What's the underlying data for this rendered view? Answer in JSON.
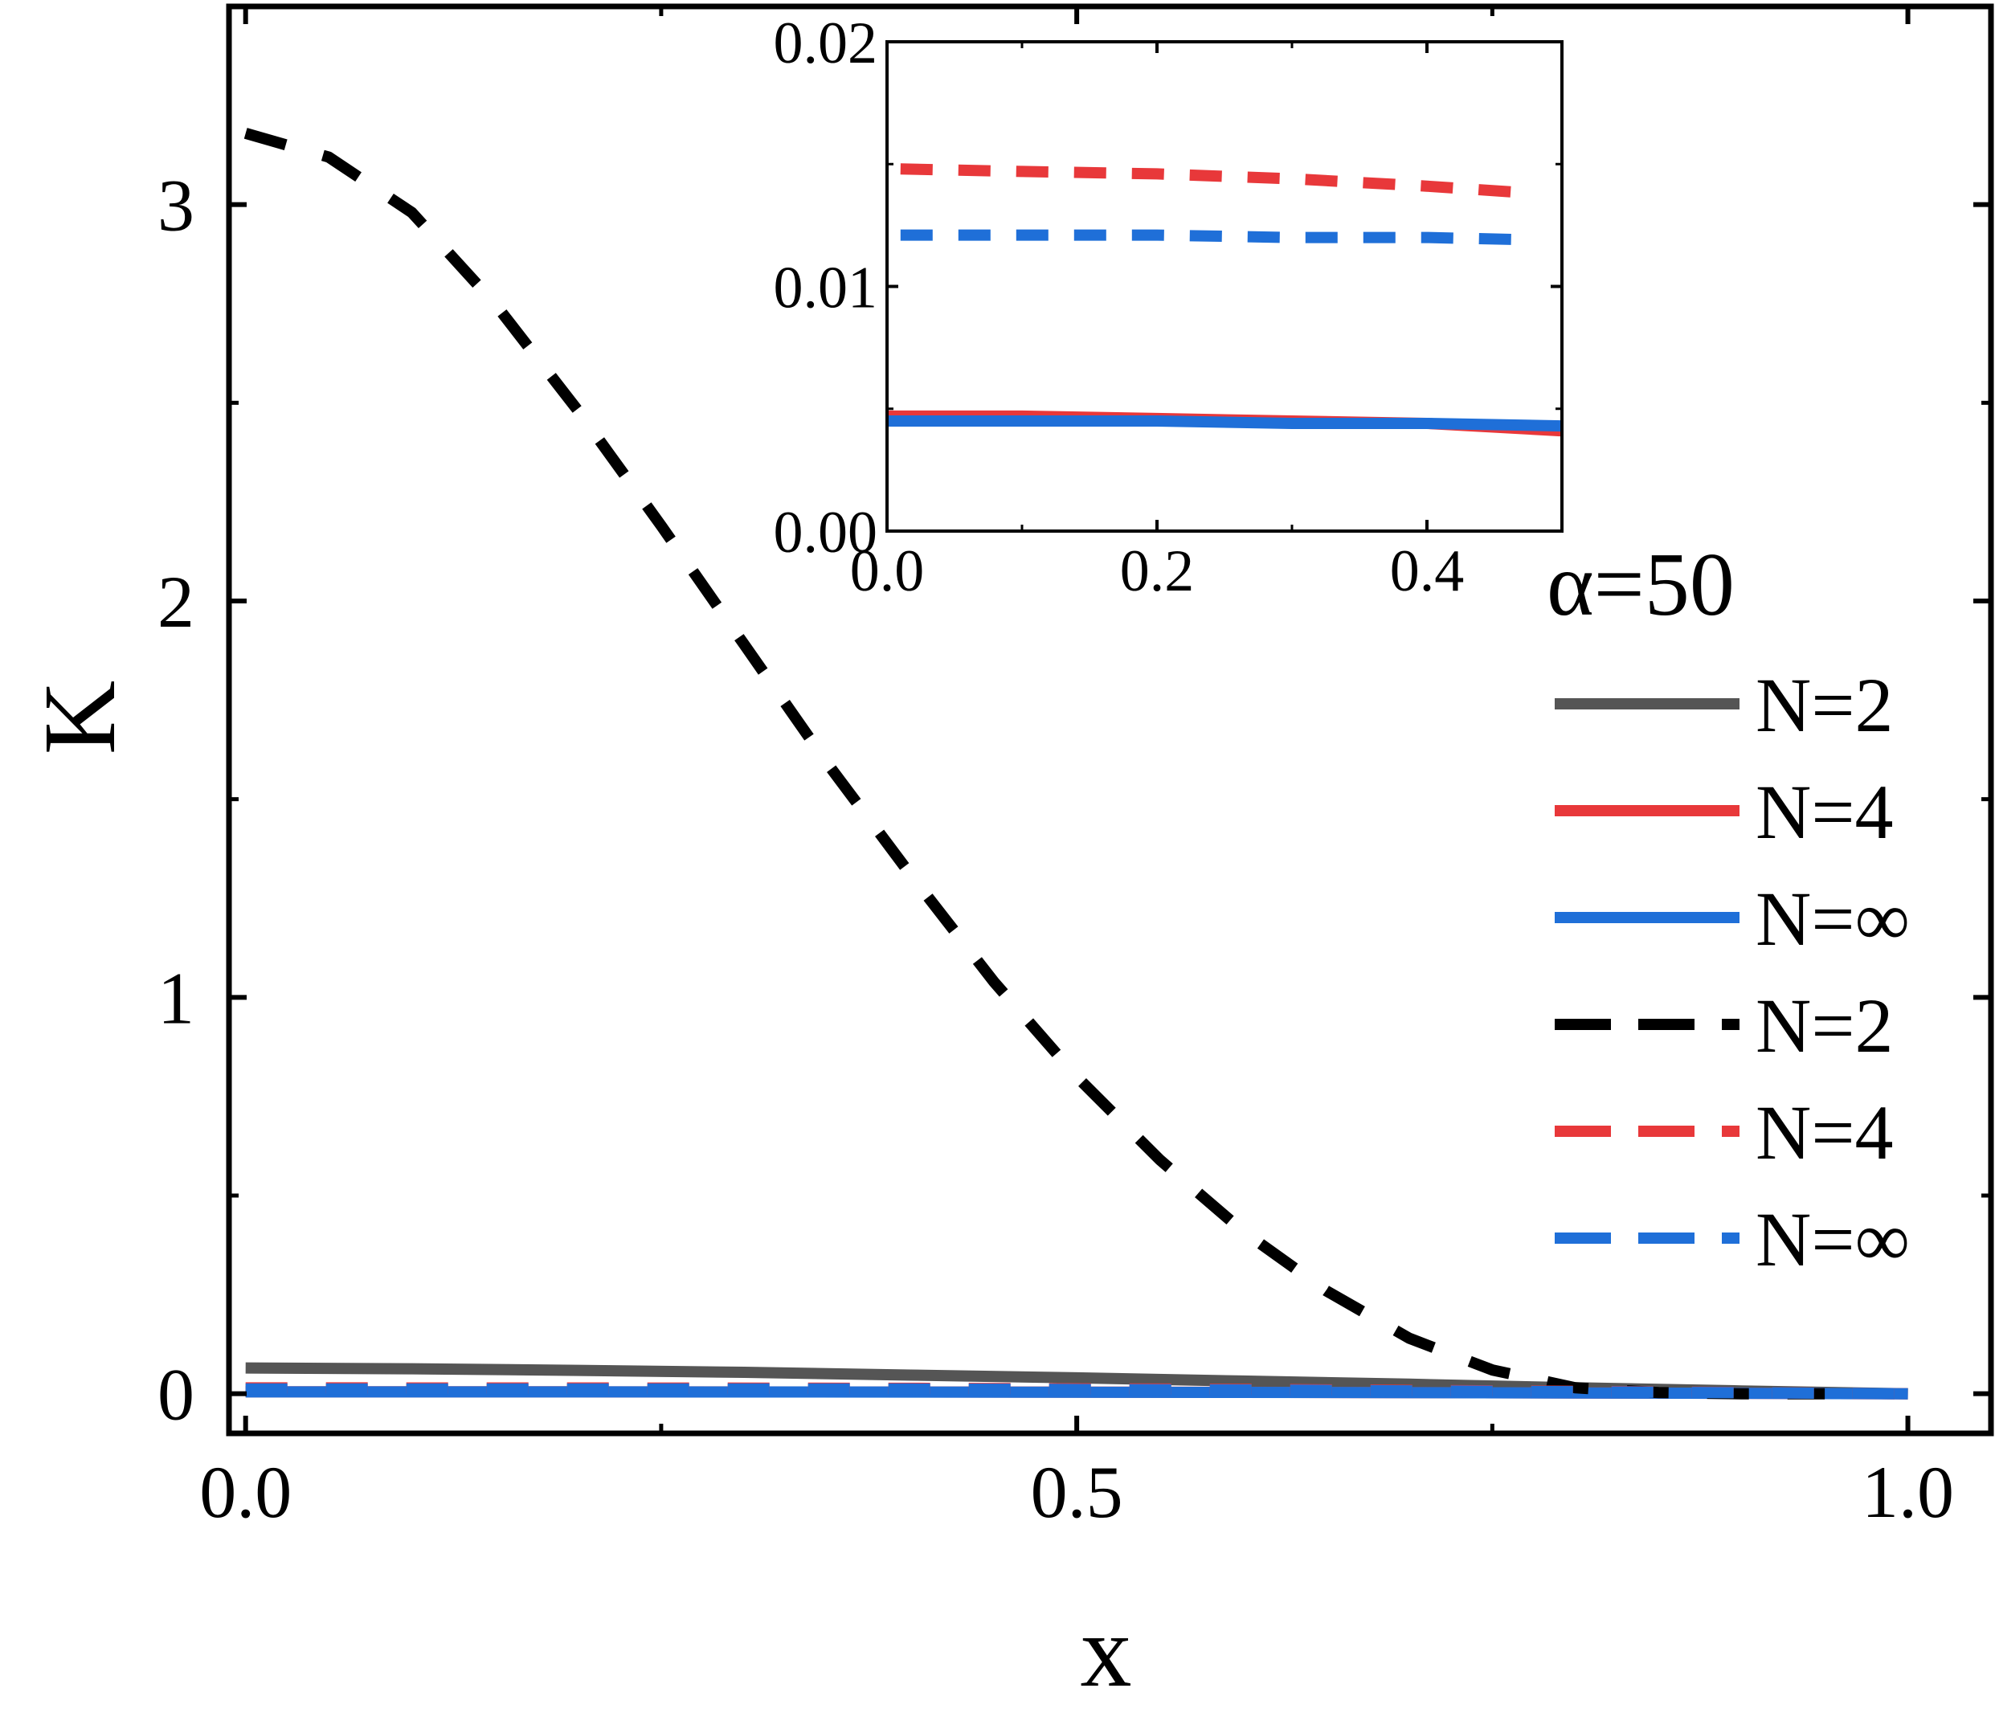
{
  "chart_data": [
    {
      "type": "line",
      "xlabel": "x",
      "ylabel": "K",
      "xlim": [
        -0.01,
        1.05
      ],
      "ylim": [
        -0.1,
        3.5
      ],
      "x_ticks": [
        "0.0",
        "0.5",
        "1.0"
      ],
      "x_tick_values": [
        0,
        0.5,
        1.0
      ],
      "y_ticks": [
        "0",
        "1",
        "2",
        "3"
      ],
      "y_tick_values": [
        0,
        1,
        2,
        3
      ],
      "legend": {
        "title": "α=50",
        "placement": "right",
        "entries": [
          {
            "label": "N=2",
            "color": "#555555",
            "style": "solid"
          },
          {
            "label": "N=4",
            "color": "#e8383a",
            "style": "solid"
          },
          {
            "label": "N=∞",
            "color": "#1f6fd8",
            "style": "solid"
          },
          {
            "label": "N=2",
            "color": "#000000",
            "style": "dashed"
          },
          {
            "label": "N=4",
            "color": "#e8383a",
            "style": "dashed"
          },
          {
            "label": "N=∞",
            "color": "#1f6fd8",
            "style": "dashed"
          }
        ]
      },
      "series": [
        {
          "name": "N=2",
          "style": "solid",
          "color": "#555555",
          "x": [
            0,
            0.1,
            0.2,
            0.3,
            0.4,
            0.5,
            0.6,
            0.7,
            0.8,
            0.9,
            1.0
          ],
          "y": [
            0.065,
            0.063,
            0.059,
            0.054,
            0.047,
            0.04,
            0.032,
            0.024,
            0.015,
            0.007,
            0.0
          ]
        },
        {
          "name": "N=4",
          "style": "solid",
          "color": "#e8383a",
          "x": [
            0,
            0.2,
            0.4,
            0.6,
            0.8,
            1.0
          ],
          "y": [
            0.005,
            0.0048,
            0.0044,
            0.0035,
            0.002,
            0.0
          ]
        },
        {
          "name": "N=∞",
          "style": "solid",
          "color": "#1f6fd8",
          "x": [
            0,
            0.2,
            0.4,
            0.6,
            0.8,
            1.0
          ],
          "y": [
            0.0046,
            0.0045,
            0.0042,
            0.0034,
            0.002,
            0.0
          ]
        },
        {
          "name": "N=2",
          "style": "dashed",
          "color": "#000000",
          "x": [
            0,
            0.05,
            0.1,
            0.15,
            0.2,
            0.25,
            0.3,
            0.35,
            0.4,
            0.45,
            0.5,
            0.55,
            0.6,
            0.65,
            0.7,
            0.75,
            0.8,
            0.85,
            0.9,
            0.95
          ],
          "y": [
            3.18,
            3.12,
            2.98,
            2.75,
            2.48,
            2.19,
            1.89,
            1.59,
            1.31,
            1.04,
            0.8,
            0.59,
            0.41,
            0.26,
            0.14,
            0.06,
            0.015,
            0.003,
            0.0,
            0.0
          ]
        },
        {
          "name": "N=4",
          "style": "dashed",
          "color": "#e8383a",
          "x": [
            0,
            0.2,
            0.4,
            0.6,
            0.8,
            1.0
          ],
          "y": [
            0.0148,
            0.0145,
            0.0138,
            0.011,
            0.006,
            0.0
          ]
        },
        {
          "name": "N=∞",
          "style": "dashed",
          "color": "#1f6fd8",
          "x": [
            0,
            0.2,
            0.4,
            0.6,
            0.8,
            1.0
          ],
          "y": [
            0.0121,
            0.012,
            0.0118,
            0.0095,
            0.005,
            0.0
          ]
        }
      ]
    },
    {
      "type": "line",
      "xlabel": "",
      "ylabel": "",
      "xlim": [
        0,
        0.5
      ],
      "ylim": [
        0,
        0.02
      ],
      "x_ticks": [
        "0.0",
        "0.2",
        "0.4"
      ],
      "x_tick_values": [
        0,
        0.2,
        0.4
      ],
      "y_ticks": [
        "0.00",
        "0.01",
        "0.02"
      ],
      "y_tick_values": [
        0,
        0.01,
        0.02
      ],
      "series": [
        {
          "name": "N=4",
          "style": "solid",
          "color": "#e8383a",
          "x": [
            0,
            0.1,
            0.2,
            0.3,
            0.4,
            0.5
          ],
          "y": [
            0.0047,
            0.0047,
            0.0046,
            0.0045,
            0.0044,
            0.0041
          ]
        },
        {
          "name": "N=∞",
          "style": "solid",
          "color": "#1f6fd8",
          "x": [
            0,
            0.1,
            0.2,
            0.3,
            0.4,
            0.5
          ],
          "y": [
            0.0045,
            0.0045,
            0.0045,
            0.0044,
            0.0044,
            0.0043
          ]
        },
        {
          "name": "N=4",
          "style": "dashed",
          "color": "#e8383a",
          "x": [
            0.01,
            0.1,
            0.2,
            0.3,
            0.4,
            0.48
          ],
          "y": [
            0.0148,
            0.0147,
            0.0146,
            0.0144,
            0.0141,
            0.0138
          ]
        },
        {
          "name": "N=∞",
          "style": "dashed",
          "color": "#1f6fd8",
          "x": [
            0.01,
            0.1,
            0.2,
            0.3,
            0.4,
            0.48
          ],
          "y": [
            0.0121,
            0.0121,
            0.0121,
            0.012,
            0.012,
            0.0119
          ]
        }
      ]
    }
  ]
}
